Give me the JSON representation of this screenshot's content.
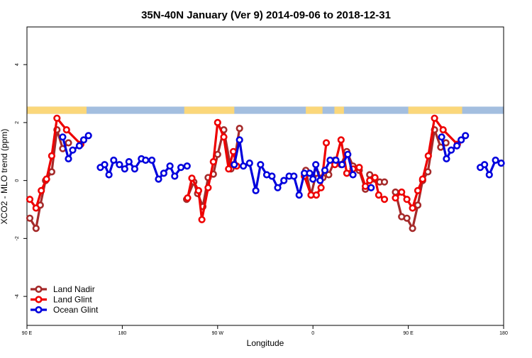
{
  "chart_data": {
    "type": "line",
    "title": "35N-40N January (Ver 9)   2014-09-06 to 2018-12-31",
    "xlabel": "Longitude",
    "ylabel": "XCO2 - MLO trend (ppm)",
    "xlim": [
      0,
      1
    ],
    "ylim": [
      -5.0,
      5.3
    ],
    "x_ticks": [
      {
        "pos": 0.0,
        "label": "90 E"
      },
      {
        "pos": 0.2,
        "label": "180"
      },
      {
        "pos": 0.4,
        "label": "90 W"
      },
      {
        "pos": 0.6,
        "label": "0"
      },
      {
        "pos": 0.8,
        "label": "90 E"
      },
      {
        "pos": 1.0,
        "label": "180"
      }
    ],
    "y_ticks": [
      -4,
      -2,
      0,
      2,
      4
    ],
    "grid": false,
    "legend_position": "bottom-left",
    "land_ocean_band": {
      "y_range": [
        2.3,
        2.55
      ],
      "ocean_color": "#a3bedf",
      "land_color": "#fbd77a",
      "land_spans": [
        [
          0.0,
          0.125
        ],
        [
          0.33,
          0.435
        ],
        [
          0.585,
          0.62
        ],
        [
          0.645,
          0.665
        ],
        [
          0.8,
          0.913
        ]
      ]
    },
    "series": [
      {
        "name": "Land Nadir",
        "color": "#a52a2a",
        "segments": [
          [
            [
              0.006,
              -1.3
            ],
            [
              0.019,
              -1.65
            ],
            [
              0.028,
              -0.85
            ],
            [
              0.039,
              0.0
            ],
            [
              0.052,
              0.3
            ],
            [
              0.063,
              1.75
            ],
            [
              0.075,
              1.1
            ],
            [
              0.087,
              1.3
            ]
          ],
          [
            [
              0.335,
              -0.65
            ],
            [
              0.35,
              -0.05
            ],
            [
              0.358,
              -0.45
            ],
            [
              0.369,
              -0.9
            ],
            [
              0.38,
              0.1
            ],
            [
              0.391,
              0.22
            ],
            [
              0.4,
              0.9
            ],
            [
              0.413,
              1.75
            ],
            [
              0.428,
              0.4
            ],
            [
              0.434,
              0.55
            ],
            [
              0.446,
              1.8
            ]
          ],
          [
            [
              0.585,
              0.35
            ],
            [
              0.596,
              -0.5
            ],
            [
              0.607,
              0.25
            ],
            [
              0.621,
              0.1
            ]
          ],
          [
            [
              0.633,
              0.2
            ],
            [
              0.646,
              0.7
            ],
            [
              0.659,
              0.55
            ],
            [
              0.671,
              1.0
            ],
            [
              0.684,
              0.5
            ],
            [
              0.697,
              0.35
            ],
            [
              0.71,
              -0.3
            ],
            [
              0.719,
              0.2
            ],
            [
              0.73,
              0.05
            ],
            [
              0.74,
              -0.05
            ],
            [
              0.75,
              -0.05
            ]
          ],
          [
            [
              0.773,
              -0.4
            ],
            [
              0.786,
              -1.25
            ],
            [
              0.797,
              -1.3
            ],
            [
              0.809,
              -1.65
            ],
            [
              0.82,
              -0.85
            ],
            [
              0.83,
              0.0
            ],
            [
              0.841,
              0.3
            ],
            [
              0.855,
              1.75
            ],
            [
              0.868,
              1.15
            ],
            [
              0.879,
              1.3
            ]
          ]
        ]
      },
      {
        "name": "Land Glint",
        "color": "#ee0000",
        "segments": [
          [
            [
              0.006,
              -0.65
            ],
            [
              0.019,
              -0.95
            ],
            [
              0.03,
              -0.35
            ],
            [
              0.041,
              0.05
            ],
            [
              0.052,
              0.85
            ],
            [
              0.063,
              2.15
            ],
            [
              0.083,
              1.75
            ],
            [
              0.113,
              1.25
            ]
          ],
          [
            [
              0.337,
              -0.6
            ],
            [
              0.346,
              0.08
            ],
            [
              0.36,
              -0.35
            ],
            [
              0.367,
              -1.35
            ],
            [
              0.38,
              -0.25
            ],
            [
              0.391,
              0.65
            ],
            [
              0.4,
              2.0
            ],
            [
              0.413,
              1.5
            ],
            [
              0.423,
              0.4
            ],
            [
              0.433,
              1.0
            ],
            [
              0.44,
              0.5
            ]
          ],
          [
            [
              0.582,
              0.15
            ],
            [
              0.596,
              -0.5
            ],
            [
              0.607,
              -0.5
            ],
            [
              0.617,
              -0.25
            ],
            [
              0.628,
              1.3
            ]
          ],
          [
            [
              0.646,
              0.55
            ],
            [
              0.659,
              1.4
            ],
            [
              0.671,
              0.25
            ],
            [
              0.684,
              0.4
            ],
            [
              0.697,
              0.45
            ],
            [
              0.71,
              -0.2
            ],
            [
              0.719,
              0.0
            ],
            [
              0.73,
              0.1
            ],
            [
              0.738,
              -0.5
            ],
            [
              0.75,
              -0.65
            ]
          ],
          [
            [
              0.773,
              -0.6
            ],
            [
              0.786,
              -0.4
            ],
            [
              0.797,
              -0.65
            ],
            [
              0.809,
              -0.95
            ],
            [
              0.82,
              -0.35
            ],
            [
              0.83,
              0.05
            ],
            [
              0.842,
              0.85
            ],
            [
              0.855,
              2.15
            ],
            [
              0.873,
              1.75
            ],
            [
              0.903,
              1.25
            ]
          ]
        ]
      },
      {
        "name": "Ocean Glint",
        "color": "#0000dd",
        "segments": [
          [
            [
              0.075,
              1.5
            ],
            [
              0.087,
              0.75
            ],
            [
              0.096,
              1.05
            ],
            [
              0.11,
              1.2
            ],
            [
              0.119,
              1.4
            ],
            [
              0.129,
              1.55
            ]
          ],
          [
            [
              0.154,
              0.45
            ],
            [
              0.163,
              0.55
            ],
            [
              0.172,
              0.2
            ],
            [
              0.182,
              0.7
            ],
            [
              0.194,
              0.55
            ],
            [
              0.205,
              0.4
            ],
            [
              0.214,
              0.65
            ],
            [
              0.226,
              0.4
            ],
            [
              0.24,
              0.75
            ],
            [
              0.249,
              0.7
            ],
            [
              0.262,
              0.7
            ],
            [
              0.276,
              0.05
            ],
            [
              0.287,
              0.25
            ],
            [
              0.3,
              0.5
            ],
            [
              0.31,
              0.15
            ],
            [
              0.323,
              0.45
            ],
            [
              0.336,
              0.5
            ]
          ],
          [
            [
              0.435,
              0.55
            ],
            [
              0.446,
              1.4
            ],
            [
              0.454,
              0.5
            ],
            [
              0.467,
              0.6
            ],
            [
              0.48,
              -0.35
            ],
            [
              0.49,
              0.55
            ],
            [
              0.503,
              0.2
            ],
            [
              0.514,
              0.15
            ],
            [
              0.526,
              -0.25
            ],
            [
              0.539,
              0.0
            ],
            [
              0.55,
              0.15
            ],
            [
              0.56,
              0.15
            ],
            [
              0.571,
              -0.5
            ],
            [
              0.582,
              0.25
            ],
            [
              0.593,
              0.25
            ],
            [
              0.6,
              0.05
            ],
            [
              0.606,
              0.55
            ],
            [
              0.615,
              0.0
            ],
            [
              0.625,
              0.35
            ],
            [
              0.636,
              0.7
            ],
            [
              0.648,
              0.7
            ],
            [
              0.661,
              0.55
            ],
            [
              0.673,
              0.9
            ],
            [
              0.684,
              0.2
            ]
          ],
          [
            [
              0.722,
              -0.25
            ]
          ],
          [
            [
              0.87,
              1.5
            ],
            [
              0.88,
              0.75
            ],
            [
              0.89,
              1.05
            ],
            [
              0.902,
              1.2
            ],
            [
              0.911,
              1.4
            ],
            [
              0.92,
              1.55
            ]
          ],
          [
            [
              0.951,
              0.45
            ],
            [
              0.96,
              0.55
            ],
            [
              0.97,
              0.2
            ],
            [
              0.983,
              0.7
            ],
            [
              0.995,
              0.6
            ]
          ]
        ]
      }
    ]
  }
}
